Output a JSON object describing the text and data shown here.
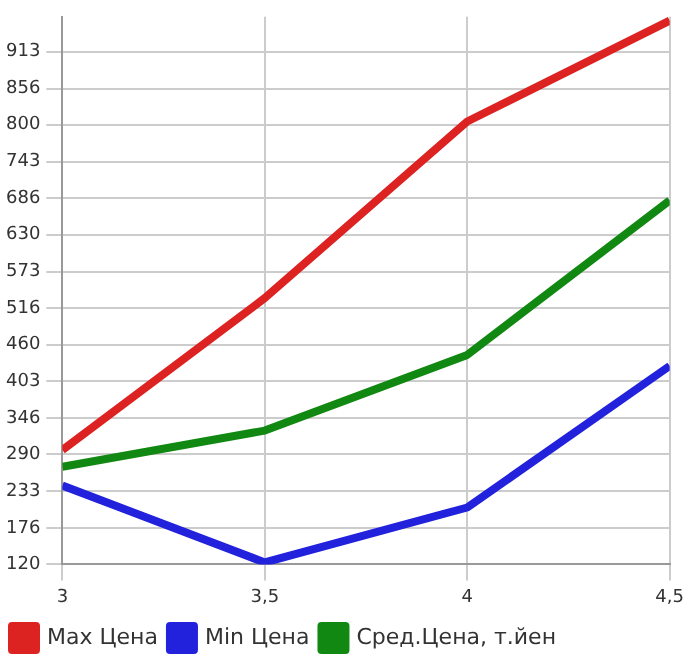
{
  "chart_data": {
    "type": "line",
    "x": [
      3,
      3.5,
      4,
      4.5
    ],
    "series": [
      {
        "name": "Max Цена",
        "color": "#dd2222",
        "values": [
          297,
          532,
          805,
          961
        ]
      },
      {
        "name": "Min Цена",
        "color": "#2222dd",
        "values": [
          242,
          123,
          208,
          427
        ]
      },
      {
        "name": "Сред.Цена, т.йен",
        "color": "#118811",
        "values": [
          271,
          327,
          444,
          683
        ]
      }
    ],
    "xlim": [
      3,
      4.5
    ],
    "xticks": [
      3,
      {
        "value": 3.5,
        "label": "3,5"
      },
      4,
      {
        "value": 4.5,
        "label": "4,5"
      }
    ],
    "ylim": [
      120,
      967
    ],
    "yticks": [
      120,
      176,
      233,
      290,
      346,
      403,
      460,
      516,
      573,
      630,
      686,
      743,
      800,
      856,
      913
    ],
    "grid": true,
    "legend": "bottom",
    "marker": "none",
    "line_style": "solid"
  }
}
